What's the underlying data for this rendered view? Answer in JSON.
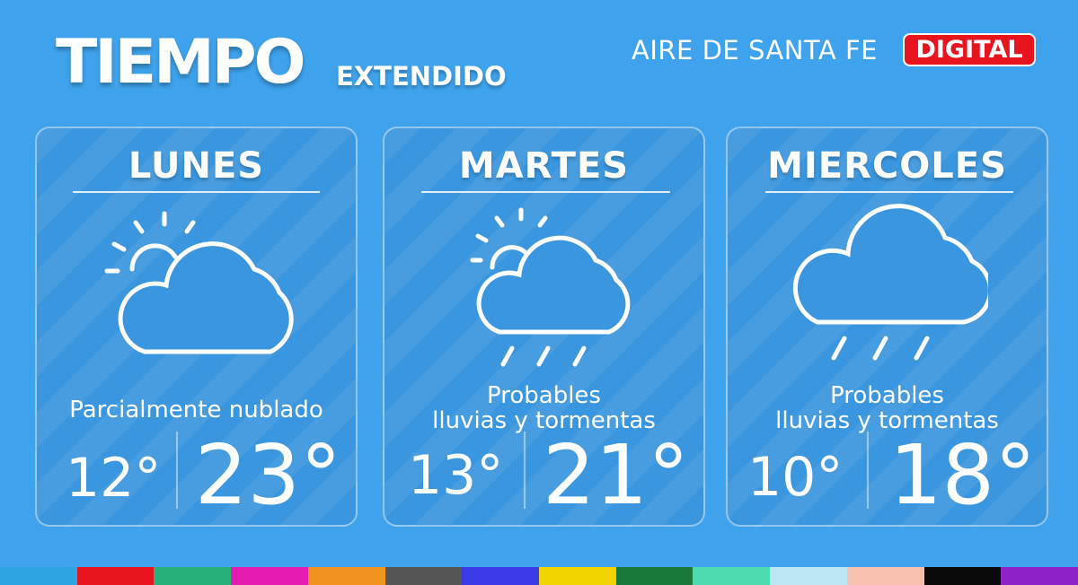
{
  "header": {
    "title": "TIEMPO",
    "subtitle": "EXTENDIDO",
    "brand": "AIRE DE SANTA FE",
    "badge": "DIGITAL"
  },
  "days": [
    {
      "name": "LUNES",
      "icon": "partly-cloudy-icon",
      "desc_line1": "Parcialmente nublado",
      "desc_line2": "",
      "min": "12°",
      "max": "23°"
    },
    {
      "name": "MARTES",
      "icon": "partly-cloudy-rain-icon",
      "desc_line1": "Probables",
      "desc_line2": "lluvias y tormentas",
      "min": "13°",
      "max": "21°"
    },
    {
      "name": "MIERCOLES",
      "icon": "cloud-rain-icon",
      "desc_line1": "Probables",
      "desc_line2": "lluvias y tormentas",
      "min": "10°",
      "max": "18°"
    }
  ],
  "colors": {
    "background": "#3ea2ec",
    "badge": "#e8141d",
    "strip": [
      "#2fa4e3",
      "#e8141d",
      "#27b27a",
      "#e51ab0",
      "#f39322",
      "#555555",
      "#3a3ae8",
      "#f2d400",
      "#1a7a3c",
      "#4cdcb0",
      "#bde6f3",
      "#f7c1b0",
      "#0a0a0a",
      "#8f22c7"
    ]
  }
}
